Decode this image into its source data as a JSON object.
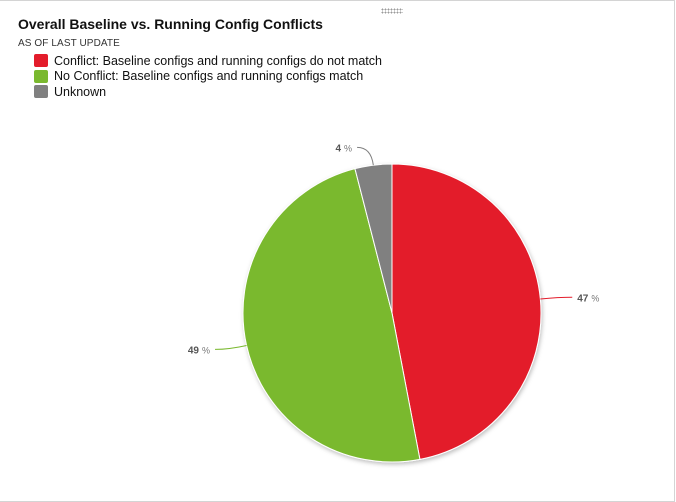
{
  "header": {
    "title": "Overall Baseline vs. Running Config Conflicts",
    "subtitle": "AS OF LAST UPDATE"
  },
  "chart_data": {
    "type": "pie",
    "title": "Overall Baseline vs. Running Config Conflicts",
    "legend_position": "top-left",
    "slices": [
      {
        "label": "Conflict: Baseline configs and running configs do not match",
        "value": 47,
        "color": "#e31c2b",
        "pct_text": "47",
        "unit_text": "%"
      },
      {
        "label": "No Conflict: Baseline configs and running configs match",
        "value": 49,
        "color": "#7ab92f",
        "pct_text": "49",
        "unit_text": "%"
      },
      {
        "label": "Unknown",
        "value": 4,
        "color": "#808080",
        "pct_text": "4",
        "unit_text": "%"
      }
    ]
  }
}
